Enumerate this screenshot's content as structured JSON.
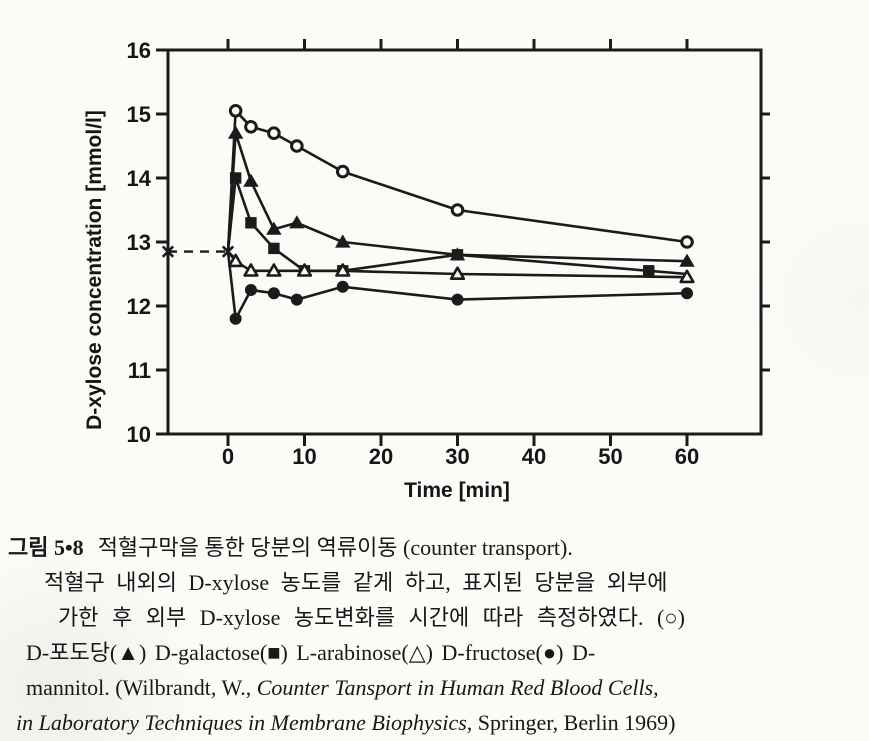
{
  "colors": {
    "ink": "#1b1b1b",
    "paper": "#fcfbf8"
  },
  "chart_data": {
    "type": "line",
    "title": "",
    "ylabel": "D-xylose concentration [mmol/l]",
    "xlabel": "Time [min]",
    "ylim": [
      10,
      16
    ],
    "xlim": [
      0,
      60
    ],
    "yticks": [
      10,
      11,
      12,
      13,
      14,
      15,
      16
    ],
    "xticks": [
      0,
      10,
      20,
      30,
      40,
      50,
      60
    ],
    "grid": false,
    "legend_position": "none",
    "baseline": {
      "marker": "x-mark",
      "value": 12.85,
      "dashed": true
    },
    "series": [
      {
        "name": "D-포도당",
        "glyph": "○",
        "marker": "open-circle",
        "points": [
          [
            0,
            12.85,
            0
          ],
          [
            1,
            15.05
          ],
          [
            3,
            14.8
          ],
          [
            6,
            14.7
          ],
          [
            9,
            14.5
          ],
          [
            15,
            14.1
          ],
          [
            30,
            13.5
          ],
          [
            60,
            13.0
          ]
        ]
      },
      {
        "name": "D-galactose",
        "glyph": "▲",
        "marker": "filled-triangle",
        "points": [
          [
            0,
            12.85,
            0
          ],
          [
            1,
            14.7
          ],
          [
            3,
            13.95
          ],
          [
            6,
            13.2
          ],
          [
            9,
            13.3
          ],
          [
            15,
            13.0
          ],
          [
            30,
            12.8
          ],
          [
            60,
            12.7
          ]
        ]
      },
      {
        "name": "L-arabinose",
        "glyph": "■",
        "marker": "filled-square",
        "points": [
          [
            0,
            12.85,
            0
          ],
          [
            1,
            14.0
          ],
          [
            3,
            13.3
          ],
          [
            6,
            12.9
          ],
          [
            10,
            12.55
          ],
          [
            15,
            12.55
          ],
          [
            30,
            12.8
          ],
          [
            55,
            12.55
          ],
          [
            60,
            12.5,
            0
          ]
        ]
      },
      {
        "name": "D-fructose",
        "glyph": "△",
        "marker": "open-triangle",
        "points": [
          [
            0,
            12.85,
            0
          ],
          [
            1,
            12.7
          ],
          [
            3,
            12.55
          ],
          [
            6,
            12.55
          ],
          [
            10,
            12.55
          ],
          [
            15,
            12.55
          ],
          [
            30,
            12.5
          ],
          [
            60,
            12.45
          ]
        ]
      },
      {
        "name": "D-mannitol",
        "glyph": "●",
        "marker": "filled-circle",
        "points": [
          [
            0,
            12.85,
            0
          ],
          [
            1,
            11.8
          ],
          [
            3,
            12.25
          ],
          [
            6,
            12.2
          ],
          [
            9,
            12.1
          ],
          [
            15,
            12.3
          ],
          [
            30,
            12.1
          ],
          [
            60,
            12.2
          ]
        ]
      }
    ]
  },
  "caption": {
    "figure_label": "그림 5•8",
    "title": "적혈구막을 통한 당분의 역류이동 (counter transport).",
    "line2": "적혈구 내외의 D-xylose 농도를 같게 하고, 표지된 당분을 외부에",
    "line3": "가한 후 외부 D-xylose 농도변화를 시간에 따라 측정하였다. (○)",
    "line4": "D-포도당(▲) D-galactose(■) L-arabinose(△) D-fructose(●) D-",
    "line5_regular": "mannitol. (Wilbrandt, W., ",
    "line5_italic": "Counter Tansport in Human Red Blood Cells,",
    "line6_italic": "in Laboratory Techniques in Membrane Biophysics,",
    "line6_regular": " Springer, Berlin 1969)"
  }
}
